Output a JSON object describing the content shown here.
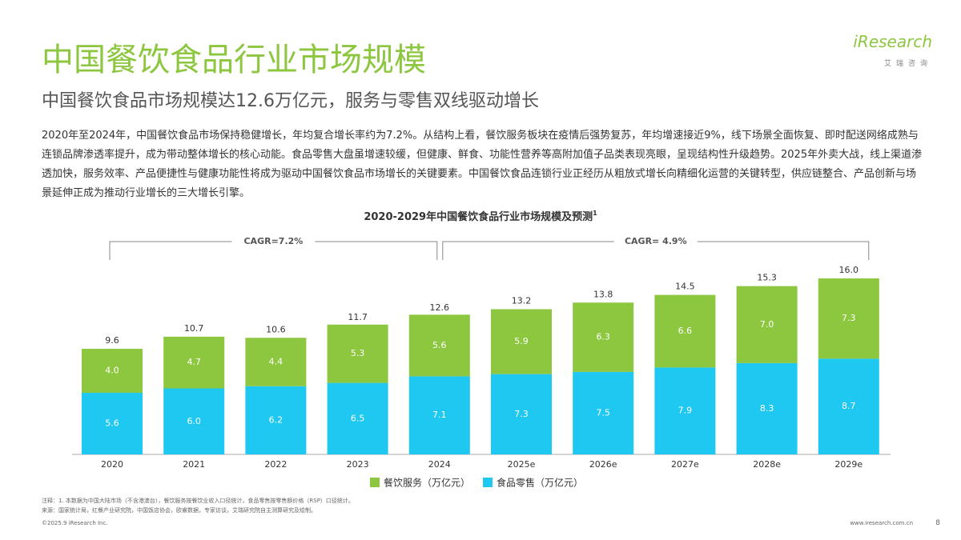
{
  "header": {
    "title": "中国餐饮食品行业市场规模",
    "subtitle": "中国餐饮食品市场规模达12.6万亿元，服务与零售双线驱动增长",
    "logo": "iResearch",
    "logo_sub": "艾瑞咨询"
  },
  "body": "2020年至2024年，中国餐饮食品市场保持稳健增长，年均复合增长率约为7.2%。从结构上看，餐饮服务板块在疫情后强势复苏，年均增速接近9%，线下场景全面恢复、即时配送网络成熟与连锁品牌渗透率提升，成为带动整体增长的核心动能。食品零售大盘虽增速较缓，但健康、鲜食、功能性营养等高附加值子品类表现亮眼，呈现结构性升级趋势。2025年外卖大战，线上渠道渗透加快，服务效率、产品便捷性与健康功能性将成为驱动中国餐饮食品市场增长的关键要素。中国餐饮食品连锁行业正经历从粗放式增长向精细化运营的关键转型，供应链整合、产品创新与场景延伸正成为推动行业增长的三大增长引擎。",
  "chart_data": {
    "type": "bar",
    "stacked": true,
    "title": "2020-2029年中国餐饮食品行业市场规模及预测",
    "title_note": "1",
    "categories": [
      "2020",
      "2021",
      "2022",
      "2023",
      "2024",
      "2025e",
      "2026e",
      "2027e",
      "2028e",
      "2029e"
    ],
    "series": [
      {
        "name": "餐饮服务（万亿元）",
        "color": "#8dc63f",
        "values": [
          4.0,
          4.7,
          4.4,
          5.3,
          5.6,
          5.9,
          6.3,
          6.6,
          7.0,
          7.3
        ],
        "value_labels": [
          "4.0",
          "4.7",
          "4.4",
          "5.3",
          "5.6",
          "5.9",
          "6.3",
          "6.6",
          "7.0",
          "7.3"
        ]
      },
      {
        "name": "食品零售（万亿元）",
        "color": "#1ec8f0",
        "values": [
          5.6,
          6.0,
          6.2,
          6.5,
          7.1,
          7.3,
          7.5,
          7.9,
          8.3,
          8.7
        ],
        "value_labels": [
          "5.6",
          "6.0",
          "6.2",
          "6.5",
          "7.1",
          "7.3",
          "7.5",
          "7.9",
          "8.3",
          "8.7"
        ]
      }
    ],
    "totals": {
      "values": [
        9.6,
        10.7,
        10.6,
        11.7,
        12.6,
        13.2,
        13.8,
        14.5,
        15.3,
        16.0
      ],
      "value_labels": [
        "9.6",
        "10.7",
        "10.6",
        "11.7",
        "12.6",
        "13.2",
        "13.8",
        "14.5",
        "15.3",
        "16.0"
      ]
    },
    "annotations": [
      "CAGR=7.2%",
      "CAGR= 4.9%"
    ]
  },
  "footer": {
    "note": "注释：1. 本数据为中国大陆市场（不含港澳台），餐饮服务按餐饮业收入口径统计，食品零售按零售额价格（RSP）口径统计。",
    "source": "来源：国家统计局，红餐产业研究院，中国饭店协会，欧睿数据，专家访谈，艾瑞研究院自主测算研究及绘制。",
    "copyright": "©2025.9 iResearch Inc.",
    "url": "www.iresearch.com.cn",
    "page": "8"
  }
}
